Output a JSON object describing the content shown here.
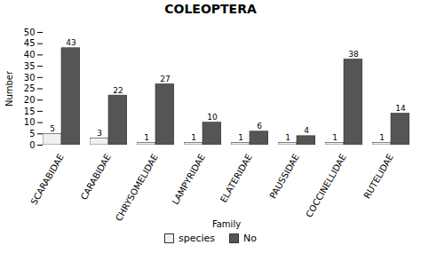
{
  "chart_data": {
    "type": "bar",
    "title": "COLEOPTERA",
    "xlabel": "Family",
    "ylabel": "Number",
    "categories": [
      "SCARABIDAE",
      "CARABIDAE",
      "CHRYSOMELIDAE",
      "LAMPYRIDAE",
      "ELATERIDAE",
      "PAUSSIDAE",
      "COCCINELLIDAE",
      "RUTELIDAE"
    ],
    "series": [
      {
        "name": "species",
        "color": "#f0f0f0",
        "values": [
          5,
          3,
          1,
          1,
          1,
          1,
          1,
          1
        ]
      },
      {
        "name": "No",
        "color": "#555555",
        "values": [
          43,
          22,
          27,
          10,
          6,
          4,
          38,
          14
        ]
      }
    ],
    "ylim": [
      0,
      50
    ],
    "yticks": [
      0,
      5,
      10,
      15,
      20,
      25,
      30,
      35,
      40,
      45,
      50
    ],
    "grid": false,
    "legend": "bottom",
    "data_labels": true
  }
}
